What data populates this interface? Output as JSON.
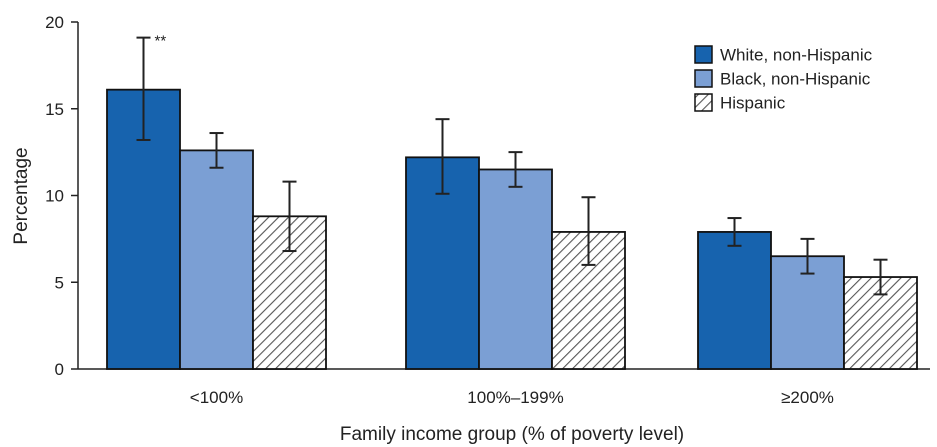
{
  "chart_data": {
    "type": "bar",
    "categories": [
      "<100%",
      "100%–199%",
      "≥200%"
    ],
    "series": [
      {
        "name": "White, non-Hispanic",
        "values": [
          16.1,
          12.2,
          7.9
        ],
        "ci_low": [
          13.2,
          10.1,
          7.1
        ],
        "ci_high": [
          19.1,
          14.4,
          8.7
        ],
        "color": "#1763ae",
        "pattern": "solid"
      },
      {
        "name": "Black, non-Hispanic",
        "values": [
          12.6,
          11.5,
          6.5
        ],
        "ci_low": [
          11.6,
          10.5,
          5.5
        ],
        "ci_high": [
          13.6,
          12.5,
          7.5
        ],
        "color": "#7b9fd4",
        "pattern": "solid"
      },
      {
        "name": "Hispanic",
        "values": [
          8.8,
          7.9,
          5.3
        ],
        "ci_low": [
          6.8,
          6.0,
          4.3
        ],
        "ci_high": [
          10.8,
          9.9,
          6.3
        ],
        "color": "#ffffff",
        "pattern": "hatch"
      }
    ],
    "xlabel": "Family income group (% of poverty level)",
    "ylabel": "Percentage",
    "ylim": [
      0,
      20
    ],
    "yticks": [
      0,
      5,
      10,
      15,
      20
    ],
    "legend_position": "top-right",
    "grid": false,
    "annotations": [
      {
        "text": "**",
        "category_index": 0,
        "series_index": 0
      }
    ]
  }
}
